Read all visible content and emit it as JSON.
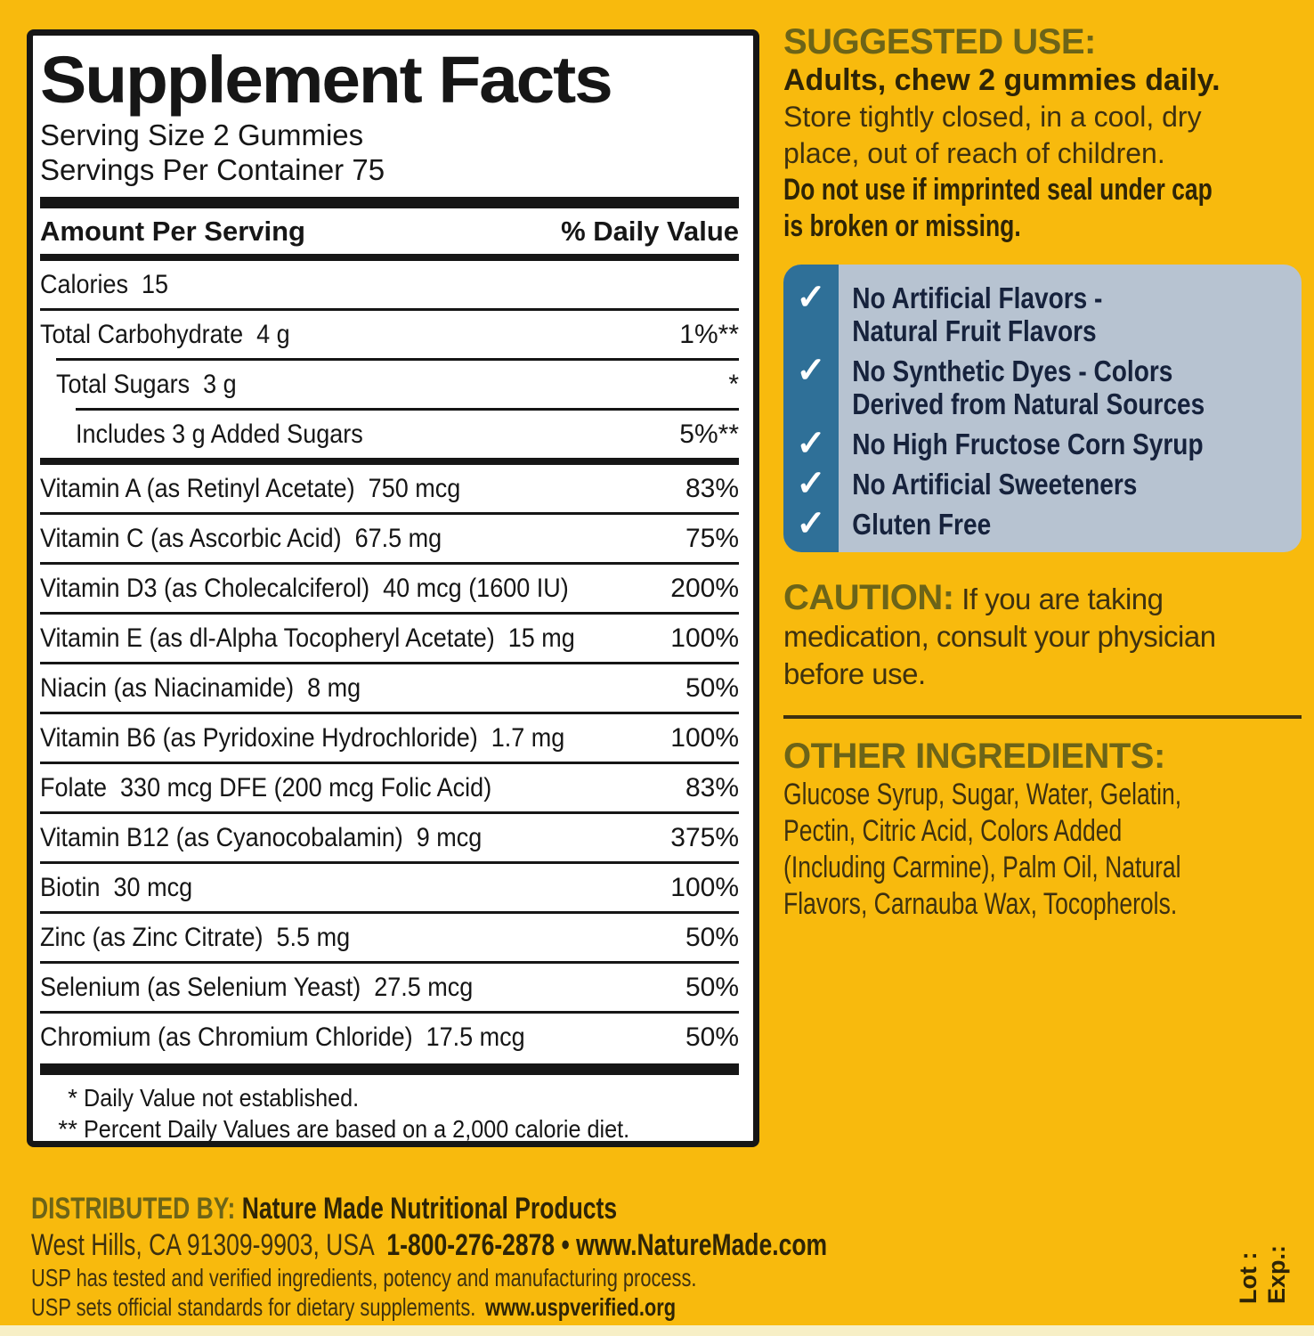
{
  "colors": {
    "yellow": "#F8BA0D",
    "white": "#FFFFFF",
    "ink": "#161616",
    "olive": "#6C6418",
    "brown": "#3E3110",
    "brown_bold": "#2E2406",
    "blue": "#2F7098",
    "light_blue": "#B7C3D1",
    "navy": "#16223C",
    "cream": "#F7EFC6"
  },
  "panel": {
    "title": "Supplement Facts",
    "serving_size": "Serving Size 2 Gummies",
    "servings_per_container": "Servings Per Container 75",
    "amount_header": "Amount Per Serving",
    "dv_header": "% Daily Value",
    "rows": [
      {
        "name": "Calories  15",
        "value": "",
        "indent": 0,
        "sep": "none"
      },
      {
        "name": "Total Carbohydrate  4 g",
        "value": "1%**",
        "indent": 0,
        "sep": "thin"
      },
      {
        "name": "Total Sugars  3 g",
        "value": "*",
        "indent": 1,
        "sep": "thin"
      },
      {
        "name": "Includes 3 g Added Sugars",
        "value": "5%**",
        "indent": 2,
        "sep": "thin"
      },
      {
        "name": "Vitamin A (as Retinyl Acetate)  750 mcg",
        "value": "83%",
        "indent": 0,
        "sep": "medium"
      },
      {
        "name": "Vitamin C (as Ascorbic Acid)  67.5 mg",
        "value": "75%",
        "indent": 0,
        "sep": "thin"
      },
      {
        "name": "Vitamin D3 (as Cholecalciferol)  40 mcg (1600 IU)",
        "value": "200%",
        "indent": 0,
        "sep": "thin"
      },
      {
        "name": "Vitamin E (as dl-Alpha Tocopheryl Acetate)  15 mg",
        "value": "100%",
        "indent": 0,
        "sep": "thin"
      },
      {
        "name": "Niacin (as Niacinamide)  8 mg",
        "value": "50%",
        "indent": 0,
        "sep": "thin"
      },
      {
        "name": "Vitamin B6 (as Pyridoxine Hydrochloride)  1.7 mg",
        "value": "100%",
        "indent": 0,
        "sep": "thin"
      },
      {
        "name": "Folate  330 mcg DFE (200 mcg Folic Acid)",
        "value": "83%",
        "indent": 0,
        "sep": "thin"
      },
      {
        "name": "Vitamin B12 (as Cyanocobalamin)  9 mcg",
        "value": "375%",
        "indent": 0,
        "sep": "thin"
      },
      {
        "name": "Biotin  30 mcg",
        "value": "100%",
        "indent": 0,
        "sep": "thin"
      },
      {
        "name": "Zinc (as Zinc Citrate)  5.5 mg",
        "value": "50%",
        "indent": 0,
        "sep": "thin"
      },
      {
        "name": "Selenium (as Selenium Yeast)  27.5 mcg",
        "value": "50%",
        "indent": 0,
        "sep": "thin"
      },
      {
        "name": "Chromium (as Chromium Chloride)  17.5 mcg",
        "value": "50%",
        "indent": 0,
        "sep": "thin"
      }
    ],
    "footnotes": [
      {
        "mark": "*",
        "text": "Daily Value not established."
      },
      {
        "mark": "**",
        "text": "Percent Daily Values are based on a 2,000 calorie diet."
      }
    ]
  },
  "suggested_use": {
    "heading": "SUGGESTED USE:",
    "dosage": "Adults, chew 2 gummies daily.",
    "storage": "Store tightly closed, in a cool, dry\nplace, out of reach of children.",
    "seal_warning": "Do not use if imprinted seal under cap\nis broken or missing."
  },
  "checklist": {
    "checkmark": "✓",
    "items": [
      "No Artificial Flavors -\nNatural Fruit Flavors",
      "No Synthetic Dyes - Colors\nDerived from Natural Sources",
      "No High Fructose Corn Syrup",
      "No Artificial Sweeteners",
      "Gluten Free"
    ]
  },
  "caution": {
    "heading": "CAUTION:",
    "text": "If you are taking\nmedication, consult your physician\nbefore use."
  },
  "other_ingredients": {
    "heading": "OTHER INGREDIENTS:",
    "text": "Glucose Syrup, Sugar, Water, Gelatin,\nPectin, Citric Acid, Colors Added\n(Including Carmine), Palm Oil, Natural\nFlavors, Carnauba Wax, Tocopherols."
  },
  "distributor": {
    "heading": "DISTRIBUTED BY:",
    "name": "Nature Made Nutritional Products",
    "address": "West Hills, CA 91309-9903, USA",
    "contact": "1-800-276-2878 • www.NatureMade.com",
    "usp_line1": "USP has tested and verified ingredients, potency and manufacturing process.",
    "usp_line2": "USP sets official standards for dietary supplements.",
    "usp_url": "www.uspverified.org"
  },
  "lot_exp": {
    "lot": "Lot :",
    "exp": "Exp.:"
  }
}
